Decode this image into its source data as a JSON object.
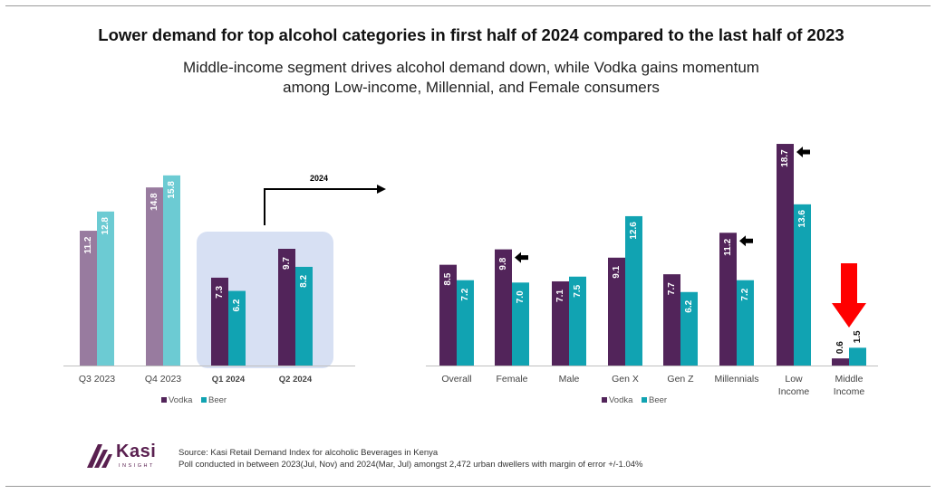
{
  "header": {
    "title": "Lower demand for top alcohol categories in first half of 2024 compared to the last half of 2023",
    "subtitle_line1": "Middle-income segment drives alcohol demand down, while Vodka gains momentum",
    "subtitle_line2": "among Low-income, Millennial, and Female consumers"
  },
  "colors": {
    "vodka_light": "#987b9f",
    "beer_light": "#6ccbd3",
    "vodka": "#52245a",
    "beer": "#11a3b2",
    "highlight_box": "#d7e0f3",
    "down_arrow": "#ff0000"
  },
  "chart_data": [
    {
      "type": "bar",
      "categories": [
        "Q3 2023",
        "Q4 2023",
        "Q1 2024",
        "Q2 2024"
      ],
      "bold_categories": [
        "Q1 2024",
        "Q2 2024"
      ],
      "series": [
        {
          "name": "Vodka",
          "values": [
            11.2,
            14.8,
            7.3,
            9.7
          ]
        },
        {
          "name": "Beer",
          "values": [
            12.8,
            15.8,
            6.2,
            8.2
          ]
        }
      ],
      "annotation": "2024",
      "ylim": [
        0,
        17
      ],
      "legend": "bottom"
    },
    {
      "type": "bar",
      "categories": [
        "Overall",
        "Female",
        "Male",
        "Gen X",
        "Gen Z",
        "Millennials",
        "Low Income",
        "Middle Income"
      ],
      "series": [
        {
          "name": "Vodka",
          "values": [
            8.5,
            9.8,
            7.1,
            9.1,
            7.7,
            11.2,
            18.7,
            0.6
          ]
        },
        {
          "name": "Beer",
          "values": [
            7.2,
            7.0,
            7.5,
            12.6,
            6.2,
            7.2,
            13.6,
            1.5
          ]
        }
      ],
      "marked_up": [
        "Female",
        "Millennials",
        "Low Income"
      ],
      "marked_down": [
        "Middle Income"
      ],
      "ylim": [
        0,
        20
      ],
      "legend": "bottom"
    }
  ],
  "footer": {
    "logo_word": "Kasi",
    "logo_sub": "INSIGHT",
    "source_line1": "Source: Kasi Retail Demand Index for alcoholic Beverages in Kenya",
    "source_line2": "Poll conducted  in between 2023(Jul, Nov) and 2024(Mar, Jul) amongst 2,472 urban dwellers with margin of error +/-1.04%"
  }
}
